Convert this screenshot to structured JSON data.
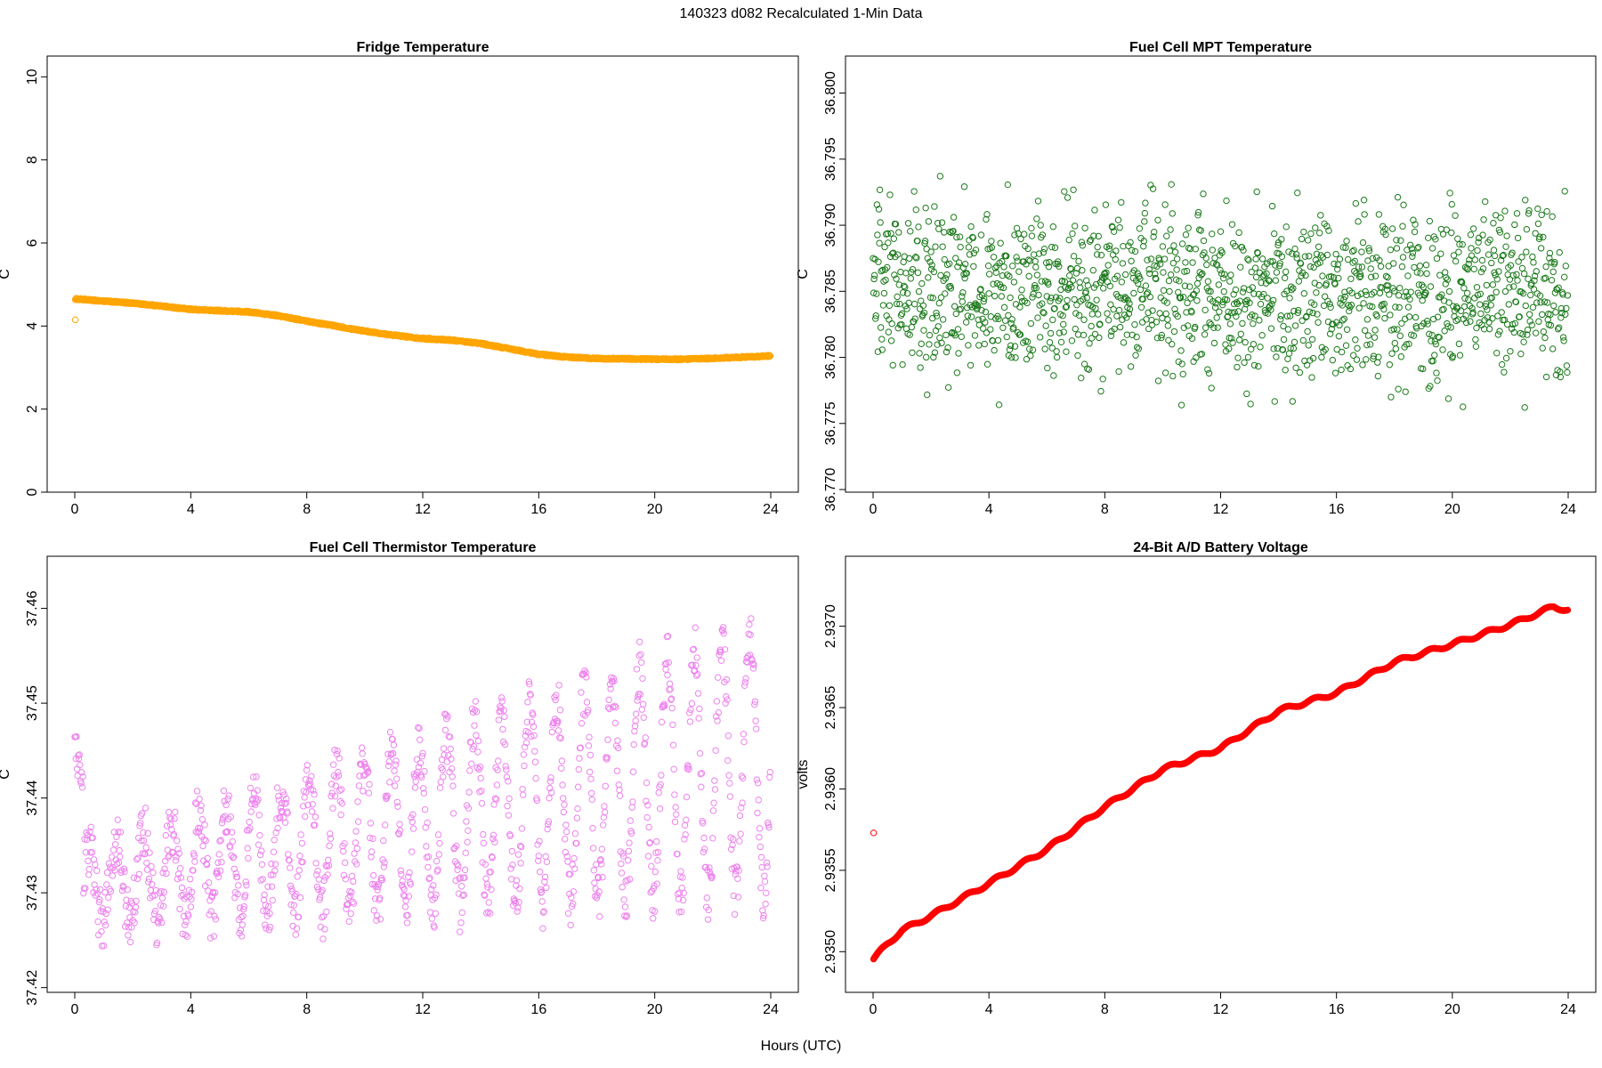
{
  "title": "140323   d082   Recalculated 1-Min Data",
  "xlabel": "Hours (UTC)",
  "chart_data": [
    {
      "type": "scatter",
      "title": "Fridge Temperature",
      "xlabel": "Hours (UTC)",
      "ylabel": "C",
      "xlim": [
        0,
        24
      ],
      "ylim": [
        0,
        10.5
      ],
      "xticks": [
        "0",
        "4",
        "8",
        "12",
        "16",
        "20",
        "24"
      ],
      "yticks": [
        "0",
        "2",
        "4",
        "6",
        "8",
        "10"
      ],
      "color": "#ffa500",
      "outlier": {
        "x": 0.02,
        "y": 4.15
      },
      "trend": {
        "x": [
          0.05,
          1,
          2,
          3,
          4,
          5,
          6,
          7,
          8,
          9,
          10,
          11,
          12,
          13,
          14,
          15,
          16,
          17,
          18,
          19,
          20,
          21,
          22,
          23,
          24
        ],
        "y": [
          4.65,
          4.6,
          4.55,
          4.48,
          4.4,
          4.37,
          4.34,
          4.25,
          4.12,
          4.0,
          3.88,
          3.78,
          3.7,
          3.66,
          3.58,
          3.45,
          3.32,
          3.25,
          3.22,
          3.21,
          3.2,
          3.2,
          3.22,
          3.25,
          3.28
        ]
      }
    },
    {
      "type": "scatter",
      "title": "Fuel Cell MPT Temperature",
      "xlabel": "Hours (UTC)",
      "ylabel": "C",
      "xlim": [
        0,
        24
      ],
      "ylim": [
        36.7698,
        36.8028
      ],
      "xticks": [
        "0",
        "4",
        "8",
        "12",
        "16",
        "20",
        "24"
      ],
      "yticks": [
        "36.770",
        "36.775",
        "36.780",
        "36.785",
        "36.790",
        "36.795",
        "36.800"
      ],
      "color": "#1b7a1b",
      "pattern": {
        "center": 36.785,
        "spread": 0.0045,
        "n": 1440
      }
    },
    {
      "type": "scatter",
      "title": "Fuel Cell Thermistor Temperature",
      "xlabel": "Hours (UTC)",
      "ylabel": "C",
      "xlim": [
        0,
        24
      ],
      "ylim": [
        37.4195,
        37.4655
      ],
      "xticks": [
        "0",
        "4",
        "8",
        "12",
        "16",
        "20",
        "24"
      ],
      "yticks": [
        "37.42",
        "37.43",
        "37.44",
        "37.45",
        "37.46"
      ],
      "color": "#ee82ee",
      "pattern": {
        "period_hours": 0.95,
        "low": [
          37.427,
          37.43
        ],
        "high": [
          37.434,
          37.458
        ],
        "n": 1200
      }
    },
    {
      "type": "scatter",
      "title": "24-Bit A/D Battery Voltage",
      "xlabel": "Hours (UTC)",
      "ylabel": "volts",
      "xlim": [
        0,
        24
      ],
      "ylim": [
        2.93475,
        2.93743
      ],
      "xticks": [
        "0",
        "4",
        "8",
        "12",
        "16",
        "20",
        "24"
      ],
      "yticks": [
        "2.9350",
        "2.9355",
        "2.9360",
        "2.9365",
        "2.9370"
      ],
      "color": "#ff0000",
      "outlier": {
        "x": 0.02,
        "y": 2.93573
      },
      "trend": {
        "x": [
          0,
          0.5,
          1,
          2,
          3,
          4,
          6,
          8,
          10,
          12,
          14,
          16,
          18,
          20,
          22,
          23.5,
          24
        ],
        "y": [
          2.93495,
          2.93505,
          2.93513,
          2.93522,
          2.93532,
          2.93542,
          2.93563,
          2.93589,
          2.93612,
          2.93625,
          2.93648,
          2.93659,
          2.93678,
          2.93689,
          2.93701,
          2.93712,
          2.9371
        ]
      },
      "wiggle_period_hours": 1.0,
      "wiggle_amplitude": 1.2e-05
    }
  ]
}
